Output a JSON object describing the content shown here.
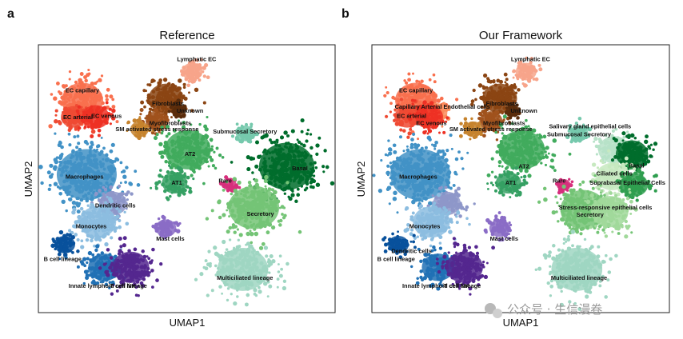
{
  "chart_data": [
    {
      "type": "scatter",
      "panel": "a",
      "title": "Reference",
      "xlabel": "UMAP1",
      "ylabel": "UMAP2",
      "legend": "none (on-data labels)",
      "clusters": [
        {
          "id": "lymphatic_ec",
          "label": "Lymphatic EC",
          "color": "#f7a48a",
          "x": 7.0,
          "y": 9.2,
          "spread": 0.45,
          "n": 90
        },
        {
          "id": "ec_capillary",
          "label": "EC capillary",
          "color": "#f9704e",
          "x": 2.0,
          "y": 7.8,
          "spread": 0.9,
          "n": 220
        },
        {
          "id": "ec_arterial",
          "label": "EC arterial",
          "color": "#ef4a33",
          "x": 1.6,
          "y": 7.0,
          "spread": 0.55,
          "n": 110
        },
        {
          "id": "ec_venous",
          "label": "EC venous",
          "color": "#ee3124",
          "x": 2.6,
          "y": 7.0,
          "spread": 0.6,
          "n": 110
        },
        {
          "id": "fibroblasts",
          "label": "Fibroblasts",
          "color": "#8b4513",
          "x": 5.8,
          "y": 7.9,
          "spread": 0.75,
          "n": 200
        },
        {
          "id": "myofibroblasts",
          "label": "Myofibroblasts",
          "color": "#a0521d",
          "x": 5.4,
          "y": 6.8,
          "spread": 0.5,
          "n": 90
        },
        {
          "id": "unknown",
          "label": "Unknown",
          "color": "#5a2c0b",
          "x": 6.4,
          "y": 7.3,
          "spread": 0.3,
          "n": 50
        },
        {
          "id": "sm_stress",
          "label": "SM activated stress response",
          "color": "#c6832d",
          "x": 4.6,
          "y": 6.4,
          "spread": 0.4,
          "n": 60
        },
        {
          "id": "submucosal",
          "label": "Submucosal Secretory",
          "color": "#76c9ad",
          "x": 9.4,
          "y": 6.2,
          "spread": 0.4,
          "n": 70
        },
        {
          "id": "at2",
          "label": "AT2",
          "color": "#41ab5d",
          "x": 6.8,
          "y": 5.4,
          "spread": 1.0,
          "n": 300
        },
        {
          "id": "basal",
          "label": "Basal",
          "color": "#006d2c",
          "x": 11.3,
          "y": 4.6,
          "spread": 1.2,
          "n": 380
        },
        {
          "id": "macrophages",
          "label": "Macrophages",
          "color": "#4292c6",
          "x": 2.2,
          "y": 4.2,
          "spread": 1.3,
          "n": 420
        },
        {
          "id": "at1",
          "label": "AT1",
          "color": "#35a063",
          "x": 6.2,
          "y": 3.8,
          "spread": 0.55,
          "n": 100
        },
        {
          "id": "rare",
          "label": "Rare",
          "color": "#d62f7c",
          "x": 8.7,
          "y": 3.7,
          "spread": 0.3,
          "n": 40
        },
        {
          "id": "dendritic",
          "label": "Dendritic cells",
          "color": "#8e97c9",
          "x": 3.4,
          "y": 2.8,
          "spread": 0.6,
          "n": 120
        },
        {
          "id": "monocytes",
          "label": "Monocytes",
          "color": "#8cbde0",
          "x": 2.7,
          "y": 1.9,
          "spread": 0.8,
          "n": 200
        },
        {
          "id": "secretory",
          "label": "Secretory",
          "color": "#74c476",
          "x": 9.8,
          "y": 2.6,
          "spread": 1.1,
          "n": 340
        },
        {
          "id": "mast",
          "label": "Mast cells",
          "color": "#8a6cc6",
          "x": 5.8,
          "y": 1.6,
          "spread": 0.45,
          "n": 80
        },
        {
          "id": "b_cell",
          "label": "B cell lineage",
          "color": "#08519c",
          "x": 1.2,
          "y": 0.8,
          "spread": 0.45,
          "n": 80
        },
        {
          "id": "innate_lymphoid",
          "label": "Innate lymphoid cell NK",
          "color": "#2171b5",
          "x": 3.0,
          "y": -0.3,
          "spread": 0.7,
          "n": 160
        },
        {
          "id": "t_lineage",
          "label": "T cell lineage",
          "color": "#54278f",
          "x": 4.2,
          "y": -0.3,
          "spread": 0.8,
          "n": 220
        },
        {
          "id": "multiciliated",
          "label": "Multiciliated lineage",
          "color": "#9fd6c2",
          "x": 9.3,
          "y": -0.4,
          "spread": 1.1,
          "n": 300
        }
      ],
      "labels": [
        {
          "text": "Lymphatic EC",
          "x": 7.2,
          "y": 9.7
        },
        {
          "text": "EC capillary",
          "x": 2.0,
          "y": 8.2
        },
        {
          "text": "EC arterial",
          "x": 1.8,
          "y": 6.9
        },
        {
          "text": "EC venous",
          "x": 3.1,
          "y": 6.95
        },
        {
          "text": "Fibroblasts",
          "x": 5.9,
          "y": 7.55
        },
        {
          "text": "Unknown",
          "x": 6.9,
          "y": 7.2
        },
        {
          "text": "Myofibroblasts",
          "x": 6.0,
          "y": 6.6
        },
        {
          "text": "SM activated stress response",
          "x": 5.4,
          "y": 6.3
        },
        {
          "text": "Submucosal Secretory",
          "x": 9.4,
          "y": 6.2
        },
        {
          "text": "AT2",
          "x": 6.9,
          "y": 5.1
        },
        {
          "text": "Basal",
          "x": 11.9,
          "y": 4.4
        },
        {
          "text": "Macrophages",
          "x": 2.1,
          "y": 4.0
        },
        {
          "text": "AT1",
          "x": 6.3,
          "y": 3.7
        },
        {
          "text": "Rare",
          "x": 8.5,
          "y": 3.8
        },
        {
          "text": "Dendritic cells",
          "x": 3.5,
          "y": 2.6
        },
        {
          "text": "Secretory",
          "x": 10.1,
          "y": 2.2
        },
        {
          "text": "Monocytes",
          "x": 2.4,
          "y": 1.6
        },
        {
          "text": "Mast cells",
          "x": 6.0,
          "y": 1.0
        },
        {
          "text": "B cell lineage",
          "x": 1.1,
          "y": 0.0
        },
        {
          "text": "Multiciliated lineage",
          "x": 9.4,
          "y": -0.9
        },
        {
          "text": "Innate lymphoid cell NK",
          "x": 2.9,
          "y": -1.3
        },
        {
          "text": "T cell lineage",
          "x": 4.1,
          "y": -1.3
        }
      ]
    },
    {
      "type": "scatter",
      "panel": "b",
      "title": "Our Framework",
      "xlabel": "UMAP1",
      "ylabel": "UMAP2",
      "legend": "none (on-data labels)",
      "clusters": [
        {
          "id": "lymphatic_ec",
          "label": "Lymphatic EC",
          "color": "#f7a48a",
          "x": 7.0,
          "y": 9.2,
          "spread": 0.45,
          "n": 90
        },
        {
          "id": "ec_capillary",
          "label": "EC capillary",
          "color": "#f9704e",
          "x": 2.0,
          "y": 7.8,
          "spread": 0.9,
          "n": 220
        },
        {
          "id": "cap_arterial",
          "label": "Capillary Arterial Endothelial cells",
          "color": "#fb8d5c",
          "x": 2.9,
          "y": 7.2,
          "spread": 0.5,
          "n": 70
        },
        {
          "id": "ec_arterial",
          "label": "EC arterial",
          "color": "#ef4a33",
          "x": 1.6,
          "y": 7.0,
          "spread": 0.55,
          "n": 110
        },
        {
          "id": "ec_venous",
          "label": "EC venous",
          "color": "#ee3124",
          "x": 2.6,
          "y": 7.0,
          "spread": 0.6,
          "n": 110
        },
        {
          "id": "fibroblasts",
          "label": "Fibroblasts",
          "color": "#8b4513",
          "x": 5.8,
          "y": 7.9,
          "spread": 0.75,
          "n": 200
        },
        {
          "id": "myofibroblasts",
          "label": "Myofibroblasts",
          "color": "#a0521d",
          "x": 5.4,
          "y": 6.8,
          "spread": 0.5,
          "n": 90
        },
        {
          "id": "unknown",
          "label": "Unknown",
          "color": "#5a2c0b",
          "x": 6.4,
          "y": 7.3,
          "spread": 0.3,
          "n": 50
        },
        {
          "id": "sm_stress",
          "label": "SM activated stress response",
          "color": "#c6832d",
          "x": 4.6,
          "y": 6.4,
          "spread": 0.4,
          "n": 60
        },
        {
          "id": "salivary",
          "label": "Salivary gland epithelial cells",
          "color": "#b7e2c8",
          "x": 11.0,
          "y": 5.4,
          "spread": 0.7,
          "n": 120
        },
        {
          "id": "submucosal",
          "label": "Submucosal Secretory",
          "color": "#76c9ad",
          "x": 9.4,
          "y": 6.2,
          "spread": 0.4,
          "n": 70
        },
        {
          "id": "at2",
          "label": "AT2",
          "color": "#41ab5d",
          "x": 6.8,
          "y": 5.4,
          "spread": 1.0,
          "n": 300
        },
        {
          "id": "basal",
          "label": "Basal",
          "color": "#006d2c",
          "x": 11.8,
          "y": 5.2,
          "spread": 0.7,
          "n": 200
        },
        {
          "id": "ciliated",
          "label": "Ciliated cells",
          "color": "#c7e9c0",
          "x": 10.9,
          "y": 4.1,
          "spread": 0.7,
          "n": 150
        },
        {
          "id": "suprabasal",
          "label": "Suprabasal Epithelial Cells",
          "color": "#2f9e4f",
          "x": 11.9,
          "y": 3.7,
          "spread": 0.6,
          "n": 130
        },
        {
          "id": "macrophages",
          "label": "Macrophages",
          "color": "#4292c6",
          "x": 2.2,
          "y": 4.2,
          "spread": 1.3,
          "n": 420
        },
        {
          "id": "at1",
          "label": "AT1",
          "color": "#35a063",
          "x": 6.2,
          "y": 3.8,
          "spread": 0.55,
          "n": 100
        },
        {
          "id": "rare",
          "label": "Rare",
          "color": "#d62f7c",
          "x": 8.7,
          "y": 3.7,
          "spread": 0.3,
          "n": 40
        },
        {
          "id": "dendritic",
          "label": "Dendritic cells",
          "color": "#8e97c9",
          "x": 3.4,
          "y": 2.8,
          "spread": 0.6,
          "n": 120
        },
        {
          "id": "monocytes",
          "label": "Monocytes",
          "color": "#8cbde0",
          "x": 2.7,
          "y": 1.9,
          "spread": 0.8,
          "n": 200
        },
        {
          "id": "secretory",
          "label": "Secretory",
          "color": "#74c476",
          "x": 9.6,
          "y": 2.5,
          "spread": 1.0,
          "n": 280
        },
        {
          "id": "stress_epi",
          "label": "Stress-responsive epithelial cells",
          "color": "#a1d99b",
          "x": 10.8,
          "y": 2.4,
          "spread": 0.8,
          "n": 180
        },
        {
          "id": "mast",
          "label": "Mast cells",
          "color": "#8a6cc6",
          "x": 5.8,
          "y": 1.6,
          "spread": 0.45,
          "n": 80
        },
        {
          "id": "b_cell",
          "label": "B cell lineage",
          "color": "#08519c",
          "x": 1.2,
          "y": 0.8,
          "spread": 0.45,
          "n": 80
        },
        {
          "id": "innate_lymphoid",
          "label": "Innate lymphoid cell NK",
          "color": "#2171b5",
          "x": 3.0,
          "y": -0.3,
          "spread": 0.7,
          "n": 160
        },
        {
          "id": "t_lineage",
          "label": "T cell lineage",
          "color": "#54278f",
          "x": 4.2,
          "y": -0.3,
          "spread": 0.8,
          "n": 220
        },
        {
          "id": "multiciliated",
          "label": "Multiciliated lineage",
          "color": "#9fd6c2",
          "x": 9.3,
          "y": -0.4,
          "spread": 1.1,
          "n": 300
        }
      ],
      "labels": [
        {
          "text": "Lymphatic EC",
          "x": 7.2,
          "y": 9.7
        },
        {
          "text": "EC capillary",
          "x": 2.0,
          "y": 8.2
        },
        {
          "text": "Capillary Arterial Endothelial cells",
          "x": 3.2,
          "y": 7.4
        },
        {
          "text": "Fibroblasts",
          "x": 5.9,
          "y": 7.55
        },
        {
          "text": "EC arterial",
          "x": 1.8,
          "y": 6.95
        },
        {
          "text": "Unknown",
          "x": 6.9,
          "y": 7.2
        },
        {
          "text": "EC venous",
          "x": 2.7,
          "y": 6.6
        },
        {
          "text": "Myofibroblasts",
          "x": 6.0,
          "y": 6.6
        },
        {
          "text": "Salivary gland epithelial cells",
          "x": 9.9,
          "y": 6.45
        },
        {
          "text": "SM activated stress response",
          "x": 5.4,
          "y": 6.3
        },
        {
          "text": "Submucosal Secretory",
          "x": 9.4,
          "y": 6.05
        },
        {
          "text": "AT2",
          "x": 6.9,
          "y": 4.5
        },
        {
          "text": "Basal",
          "x": 12.0,
          "y": 4.55
        },
        {
          "text": "Ciliated cells",
          "x": 11.0,
          "y": 4.15
        },
        {
          "text": "Macrophages",
          "x": 2.1,
          "y": 4.0
        },
        {
          "text": "AT1",
          "x": 6.3,
          "y": 3.7
        },
        {
          "text": "Rare",
          "x": 8.5,
          "y": 3.8
        },
        {
          "text": "Suprabasal Epithelial Cells",
          "x": 11.6,
          "y": 3.7
        },
        {
          "text": "Stress-responsive epithelial cells",
          "x": 10.6,
          "y": 2.5
        },
        {
          "text": "Secretory",
          "x": 9.9,
          "y": 2.15
        },
        {
          "text": "Monocytes",
          "x": 2.4,
          "y": 1.6
        },
        {
          "text": "Mast cells",
          "x": 6.0,
          "y": 1.0
        },
        {
          "text": "Dendritic cells",
          "x": 1.8,
          "y": 0.4
        },
        {
          "text": "B cell lineage",
          "x": 1.1,
          "y": 0.0
        },
        {
          "text": "Multiciliated lineage",
          "x": 9.4,
          "y": -0.9
        },
        {
          "text": "Innate lymphoid cell NK",
          "x": 2.9,
          "y": -1.3
        },
        {
          "text": "T cell lineage",
          "x": 4.1,
          "y": -1.3
        }
      ]
    }
  ],
  "panels": {
    "a": {
      "letter": "a",
      "title": "Reference",
      "xlabel": "UMAP1",
      "ylabel": "UMAP2"
    },
    "b": {
      "letter": "b",
      "title": "Our Framework",
      "xlabel": "UMAP1",
      "ylabel": "UMAP2"
    }
  },
  "watermark": {
    "text": "公众号 · 生信漫卷"
  },
  "umap_range": {
    "xlim": [
      0,
      13.5
    ],
    "ylim": [
      -2.5,
      10.5
    ]
  }
}
